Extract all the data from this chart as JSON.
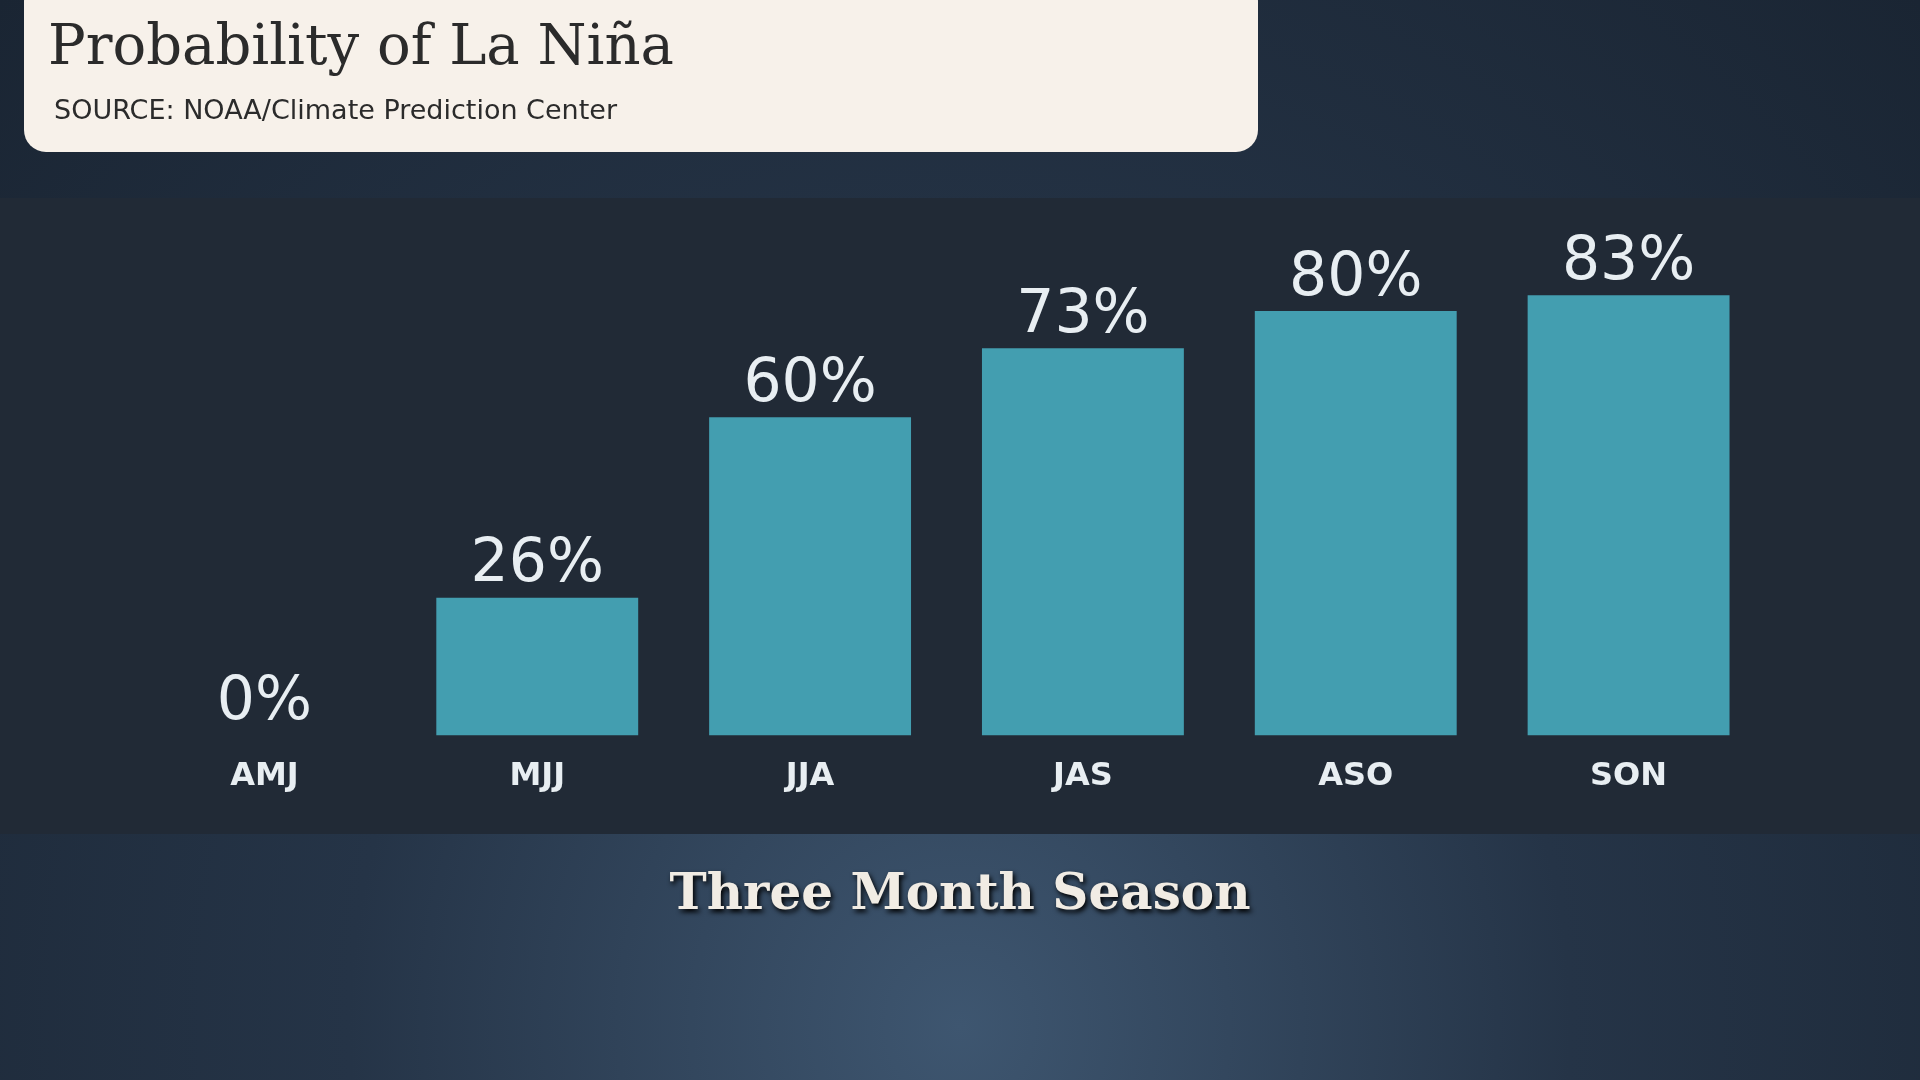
{
  "chart_data": {
    "type": "bar",
    "title": "Probability of La Niña",
    "annotations": [
      "SOURCE: NOAA/Climate Prediction Center"
    ],
    "xlabel": "Three Month Season",
    "categories": [
      "AMJ",
      "MJJ",
      "JJA",
      "JAS",
      "ASO",
      "SON"
    ],
    "values": [
      0,
      26,
      60,
      73,
      80,
      83
    ],
    "value_labels": [
      "0%",
      "26%",
      "60%",
      "73%",
      "80%",
      "83%"
    ],
    "color": "#439eb0",
    "grid": false,
    "legend": false
  }
}
